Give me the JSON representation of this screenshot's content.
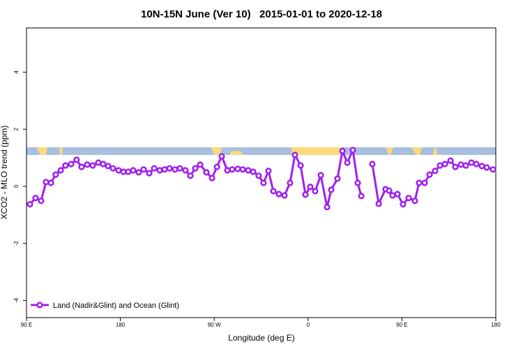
{
  "chart_data": {
    "type": "line",
    "title": "10N-15N June (Ver 10)   2015-01-01 to 2020-12-18",
    "xlabel": "Longitude (deg E)",
    "ylabel": "XCO2 - MLO trend (ppm)",
    "xlim": [
      90,
      540
    ],
    "ylim": [
      -4.6,
      5.55
    ],
    "xticks": [
      {
        "value": 90,
        "label": "90 E"
      },
      180,
      {
        "value": 270,
        "label": "90 W"
      },
      {
        "value": 360,
        "label": "0"
      },
      {
        "value": 450,
        "label": "90 E"
      },
      {
        "value": 540,
        "label": "180"
      }
    ],
    "yticks": [
      -4,
      -2,
      0,
      2,
      4
    ],
    "legend": "bottom-left",
    "x": [
      93.3,
      98.7,
      104,
      108.7,
      113.4,
      118,
      122.8,
      127.4,
      132.8,
      138,
      142.8,
      148.2,
      153.5,
      158.9,
      163.5,
      168.2,
      172.9,
      178.3,
      183,
      187.6,
      192.3,
      197.6,
      202.3,
      207.7,
      212.4,
      217.7,
      222.4,
      227.1,
      232.4,
      237.1,
      242.4,
      247.1,
      251.8,
      256.5,
      262.5,
      267.9,
      272.6,
      277.2,
      282.6,
      287.2,
      292.6,
      297.3,
      302.6,
      307.3,
      312.6,
      317.3,
      322,
      326.7,
      332,
      337.4,
      342.7,
      347.4,
      352.8,
      357.5,
      362.1,
      366.8,
      372.2,
      378.2,
      382.2,
      388.2,
      392.9,
      397.6,
      402.9,
      407.6,
      411,
      416.5,
      421.6,
      427.7,
      434.3,
      437.7,
      441,
      445.7,
      451,
      456.4,
      462.4,
      466.4,
      471.8,
      476.5,
      481.8,
      486.5,
      491.2,
      496.6,
      501.2,
      506.6,
      511.2,
      516.6,
      521.3,
      526.6,
      531.3,
      537.3
    ],
    "series": [
      {
        "name": "Land (Nadir&Glint) and Ocean (Glint)",
        "color": "#a020f0",
        "values": [
          -0.63,
          -0.41,
          -0.51,
          0.15,
          0.12,
          0.41,
          0.56,
          0.73,
          0.78,
          0.93,
          0.68,
          0.76,
          0.73,
          0.83,
          0.78,
          0.71,
          0.63,
          0.56,
          0.51,
          0.51,
          0.56,
          0.49,
          0.59,
          0.46,
          0.63,
          0.56,
          0.59,
          0.63,
          0.59,
          0.63,
          0.56,
          0.37,
          0.63,
          0.76,
          0.49,
          0.29,
          0.68,
          1.05,
          0.56,
          0.59,
          0.61,
          0.59,
          0.56,
          0.51,
          0.37,
          0.12,
          0.54,
          -0.17,
          -0.27,
          -0.32,
          0.12,
          1.1,
          0.73,
          -0.29,
          -0.02,
          -0.17,
          0.39,
          -0.73,
          -0.12,
          0.27,
          1.24,
          0.83,
          1.27,
          0.12,
          -0.34,
          null,
          0.78,
          -0.61,
          -0.1,
          -0.15,
          -0.32,
          -0.27,
          -0.63,
          -0.41,
          -0.51,
          0.12,
          0.12,
          0.41,
          0.54,
          0.73,
          0.78,
          0.9,
          0.68,
          0.76,
          0.73,
          0.83,
          0.78,
          0.71,
          0.66,
          0.59
        ]
      }
    ]
  }
}
